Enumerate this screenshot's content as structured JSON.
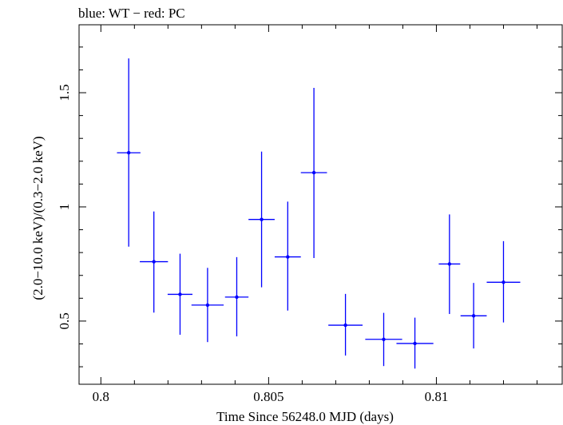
{
  "title": "blue: WT − red: PC",
  "chart_data": {
    "type": "scatter",
    "title": "blue: WT − red: PC",
    "xlabel": "Time Since 56248.0 MJD (days)",
    "ylabel": "(2.0−10.0 keV)/(0.3−2.0 keV)",
    "xlim": [
      0.79935,
      0.81375
    ],
    "ylim": [
      0.2233,
      1.7975
    ],
    "xticks": [
      0.8,
      0.805,
      0.81
    ],
    "xtick_labels": [
      "0.8",
      "0.805",
      "0.81"
    ],
    "yticks": [
      0.5,
      1,
      1.5
    ],
    "ytick_labels": [
      "0.5",
      "1",
      "1.5"
    ],
    "grid": false,
    "color": "#0000ff",
    "series": [
      {
        "points": [
          {
            "x": 0.80083,
            "y": 1.237,
            "xerr": 0.00035,
            "ylo": 0.826,
            "yhi": 1.65
          },
          {
            "x": 0.80158,
            "y": 0.76,
            "xerr": 0.00042,
            "ylo": 0.537,
            "yhi": 0.98
          },
          {
            "x": 0.80236,
            "y": 0.617,
            "xerr": 0.00037,
            "ylo": 0.44,
            "yhi": 0.795
          },
          {
            "x": 0.80318,
            "y": 0.57,
            "xerr": 0.00048,
            "ylo": 0.408,
            "yhi": 0.733
          },
          {
            "x": 0.80405,
            "y": 0.605,
            "xerr": 0.00035,
            "ylo": 0.433,
            "yhi": 0.78
          },
          {
            "x": 0.80479,
            "y": 0.945,
            "xerr": 0.00039,
            "ylo": 0.648,
            "yhi": 1.242
          },
          {
            "x": 0.80557,
            "y": 0.781,
            "xerr": 0.00039,
            "ylo": 0.546,
            "yhi": 1.023
          },
          {
            "x": 0.80635,
            "y": 1.15,
            "xerr": 0.00039,
            "ylo": 0.776,
            "yhi": 1.521
          },
          {
            "x": 0.80729,
            "y": 0.482,
            "xerr": 0.00051,
            "ylo": 0.349,
            "yhi": 0.619
          },
          {
            "x": 0.80843,
            "y": 0.42,
            "xerr": 0.00055,
            "ylo": 0.303,
            "yhi": 0.536
          },
          {
            "x": 0.80936,
            "y": 0.402,
            "xerr": 0.00055,
            "ylo": 0.292,
            "yhi": 0.515
          },
          {
            "x": 0.81039,
            "y": 0.75,
            "xerr": 0.00032,
            "ylo": 0.531,
            "yhi": 0.967
          },
          {
            "x": 0.81111,
            "y": 0.523,
            "xerr": 0.00039,
            "ylo": 0.38,
            "yhi": 0.667
          },
          {
            "x": 0.812,
            "y": 0.67,
            "xerr": 0.0005,
            "ylo": 0.494,
            "yhi": 0.85
          }
        ]
      }
    ]
  }
}
